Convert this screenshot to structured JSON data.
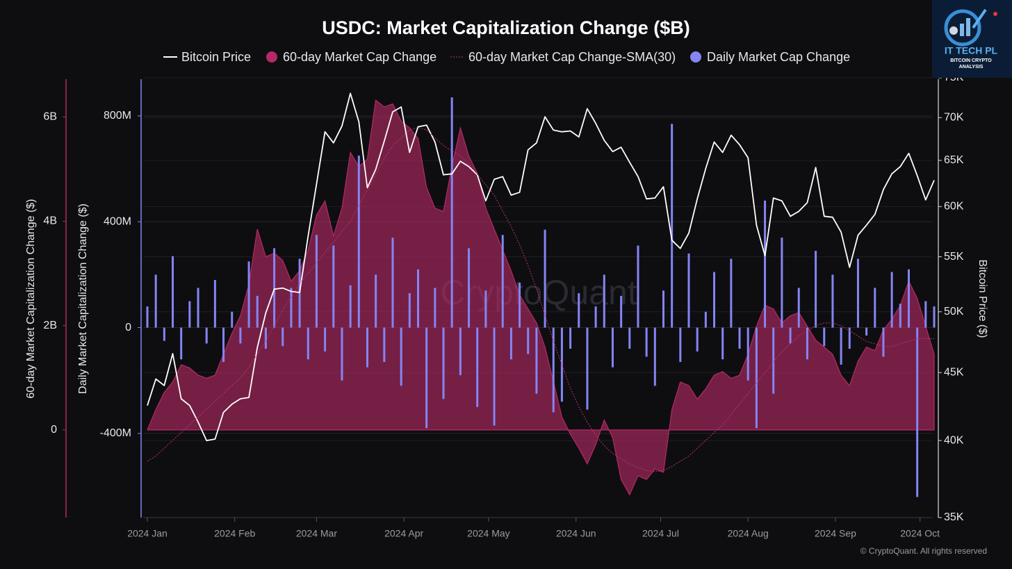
{
  "chart_data": {
    "type": "combo",
    "title": "USDC: Market Capitalization Change ($B)",
    "ylabel": "60-day Market Capitalization Change ($)",
    "y2label": "Daily Market Capitalization Change ($)",
    "y3label": "Bitcoin Price ($)",
    "watermark": "CryptoQuant",
    "credit": "© CryptoQuant. All rights reserved",
    "logo": {
      "title": "IT TECH PL",
      "line1": "BITCOIN CRYPTO",
      "line2": "ANALYSIS"
    },
    "grid": true,
    "y3scale": "log",
    "xlim": [
      0,
      93
    ],
    "xticks": [
      {
        "value": 0,
        "label": "2024 Jan"
      },
      {
        "value": 10.33,
        "label": "2024 Feb"
      },
      {
        "value": 20,
        "label": "2024 Mar"
      },
      {
        "value": 30.33,
        "label": "2024 Apr"
      },
      {
        "value": 40.33,
        "label": "2024 May"
      },
      {
        "value": 50.67,
        "label": "2024 Jun"
      },
      {
        "value": 60.67,
        "label": "2024 Jul"
      },
      {
        "value": 71,
        "label": "2024 Aug"
      },
      {
        "value": 81.33,
        "label": "2024 Sep"
      },
      {
        "value": 91.33,
        "label": "2024 Oct"
      }
    ],
    "ylim": [
      -1680000000,
      6750000000
    ],
    "yticks": [
      0,
      {
        "value": 2000000000,
        "label": "2B"
      },
      {
        "value": 4000000000,
        "label": "4B"
      },
      {
        "value": 6000000000,
        "label": "6B"
      }
    ],
    "y2lim": [
      -718000000,
      944000000
    ],
    "y2ticks": [
      {
        "value": -400000000,
        "label": "-400M"
      },
      0,
      {
        "value": 400000000,
        "label": "400M"
      },
      {
        "value": 800000000,
        "label": "800M"
      }
    ],
    "y3lim": [
      35000,
      75000
    ],
    "y3ticks": [
      {
        "value": 35000,
        "label": "35K"
      },
      {
        "value": 40000,
        "label": "40K"
      },
      {
        "value": 45000,
        "label": "45K"
      },
      {
        "value": 50000,
        "label": "50K"
      },
      {
        "value": 55000,
        "label": "55K"
      },
      {
        "value": 60000,
        "label": "60K"
      },
      {
        "value": 65000,
        "label": "65K"
      },
      {
        "value": 70000,
        "label": "70K"
      },
      {
        "value": 75000,
        "label": "75K"
      }
    ],
    "series": [
      {
        "name": "Bitcoin Price",
        "type": "line",
        "axis": "y3",
        "color": "#ffffff",
        "line_style": "solid",
        "values": [
          42500,
          44500,
          44000,
          46500,
          43000,
          42500,
          41300,
          40000,
          40100,
          42000,
          42600,
          43000,
          43100,
          47000,
          49900,
          52000,
          52100,
          51800,
          51700,
          57000,
          62400,
          68300,
          67000,
          69000,
          73000,
          69500,
          62000,
          64000,
          67200,
          70700,
          71300,
          65900,
          68900,
          69100,
          67100,
          63400,
          63500,
          64900,
          64300,
          63400,
          60600,
          62900,
          63200,
          61200,
          61500,
          66200,
          67000,
          70100,
          68500,
          68300,
          68400,
          67700,
          71100,
          69300,
          67300,
          66000,
          66500,
          64800,
          63200,
          60800,
          60900,
          62100,
          56600,
          55800,
          57300,
          60800,
          64100,
          67100,
          65900,
          67900,
          66800,
          65300,
          58100,
          55100,
          60900,
          60600,
          59000,
          59500,
          60400,
          64200,
          59000,
          58900,
          57400,
          54000,
          57100,
          58100,
          59200,
          61800,
          63500,
          64300,
          65800,
          63300,
          60700,
          62800
        ]
      },
      {
        "name": "60-day Market Cap Change",
        "type": "area",
        "axis": "y",
        "color": "#b52a66",
        "values": [
          0,
          390000000,
          720000000,
          920000000,
          1250000000,
          1190000000,
          1050000000,
          990000000,
          1050000000,
          1450000000,
          1850000000,
          2190000000,
          2790000000,
          3850000000,
          3320000000,
          3390000000,
          3250000000,
          2850000000,
          3050000000,
          3450000000,
          4120000000,
          4390000000,
          3720000000,
          4250000000,
          5320000000,
          5050000000,
          5190000000,
          6320000000,
          6190000000,
          6250000000,
          5920000000,
          5790000000,
          5590000000,
          4650000000,
          4250000000,
          4190000000,
          5050000000,
          5790000000,
          5250000000,
          4920000000,
          4250000000,
          3850000000,
          3450000000,
          3050000000,
          2590000000,
          2320000000,
          2050000000,
          1590000000,
          920000000,
          250000000,
          -80000000,
          -350000000,
          -650000000,
          -280000000,
          190000000,
          -150000000,
          -950000000,
          -1240000000,
          -880000000,
          -950000000,
          -750000000,
          -810000000,
          390000000,
          920000000,
          850000000,
          590000000,
          790000000,
          1050000000,
          1120000000,
          990000000,
          1050000000,
          1450000000,
          1990000000,
          2390000000,
          2320000000,
          2050000000,
          2190000000,
          2250000000,
          1990000000,
          1720000000,
          1590000000,
          1450000000,
          1050000000,
          850000000,
          1320000000,
          1590000000,
          1520000000,
          1920000000,
          2120000000,
          2390000000,
          2850000000,
          2520000000,
          1990000000,
          1450000000
        ]
      },
      {
        "name": "60-day Market Cap Change-SMA(30)",
        "type": "line",
        "axis": "y",
        "color": "#c2326f",
        "line_style": "dotted",
        "values": [
          -600000000,
          -500000000,
          -350000000,
          -200000000,
          -50000000,
          100000000,
          250000000,
          400000000,
          550000000,
          700000000,
          850000000,
          1000000000,
          1200000000,
          1450000000,
          1700000000,
          2000000000,
          2300000000,
          2550000000,
          2800000000,
          3000000000,
          3200000000,
          3400000000,
          3600000000,
          3800000000,
          4000000000,
          4300000000,
          4600000000,
          4900000000,
          5200000000,
          5450000000,
          5600000000,
          5750000000,
          5800000000,
          5750000000,
          5600000000,
          5450000000,
          5350000000,
          5250000000,
          5100000000,
          4900000000,
          4700000000,
          4500000000,
          4200000000,
          3900000000,
          3550000000,
          3150000000,
          2700000000,
          2200000000,
          1700000000,
          1250000000,
          800000000,
          450000000,
          150000000,
          -100000000,
          -300000000,
          -450000000,
          -550000000,
          -650000000,
          -720000000,
          -780000000,
          -800000000,
          -780000000,
          -700000000,
          -600000000,
          -500000000,
          -350000000,
          -200000000,
          -50000000,
          100000000,
          300000000,
          500000000,
          700000000,
          900000000,
          1100000000,
          1300000000,
          1500000000,
          1650000000,
          1800000000,
          1900000000,
          2000000000,
          2050000000,
          2050000000,
          2000000000,
          1900000000,
          1800000000,
          1700000000,
          1650000000,
          1600000000,
          1600000000,
          1650000000,
          1700000000,
          1750000000,
          1750000000,
          1750000000
        ]
      },
      {
        "name": "Daily Market Cap Change",
        "type": "bar",
        "axis": "y2",
        "color": "#8585f5",
        "values": [
          80000000,
          200000000,
          -50000000,
          270000000,
          -120000000,
          100000000,
          150000000,
          -60000000,
          180000000,
          -130000000,
          60000000,
          -60000000,
          250000000,
          120000000,
          -80000000,
          300000000,
          -70000000,
          150000000,
          260000000,
          -120000000,
          350000000,
          -90000000,
          310000000,
          -200000000,
          160000000,
          650000000,
          -150000000,
          200000000,
          -130000000,
          340000000,
          -220000000,
          130000000,
          220000000,
          -380000000,
          150000000,
          -270000000,
          870000000,
          -180000000,
          300000000,
          -300000000,
          140000000,
          -370000000,
          350000000,
          -120000000,
          170000000,
          -100000000,
          -250000000,
          370000000,
          -320000000,
          -280000000,
          -80000000,
          130000000,
          -310000000,
          80000000,
          200000000,
          -150000000,
          120000000,
          -80000000,
          310000000,
          -110000000,
          -220000000,
          140000000,
          770000000,
          -130000000,
          280000000,
          -90000000,
          60000000,
          210000000,
          -120000000,
          260000000,
          -80000000,
          -200000000,
          -380000000,
          480000000,
          -250000000,
          340000000,
          -60000000,
          150000000,
          -120000000,
          290000000,
          -70000000,
          200000000,
          -140000000,
          -80000000,
          260000000,
          -30000000,
          150000000,
          -110000000,
          210000000,
          90000000,
          220000000,
          -640000000,
          100000000,
          80000000
        ]
      }
    ]
  }
}
